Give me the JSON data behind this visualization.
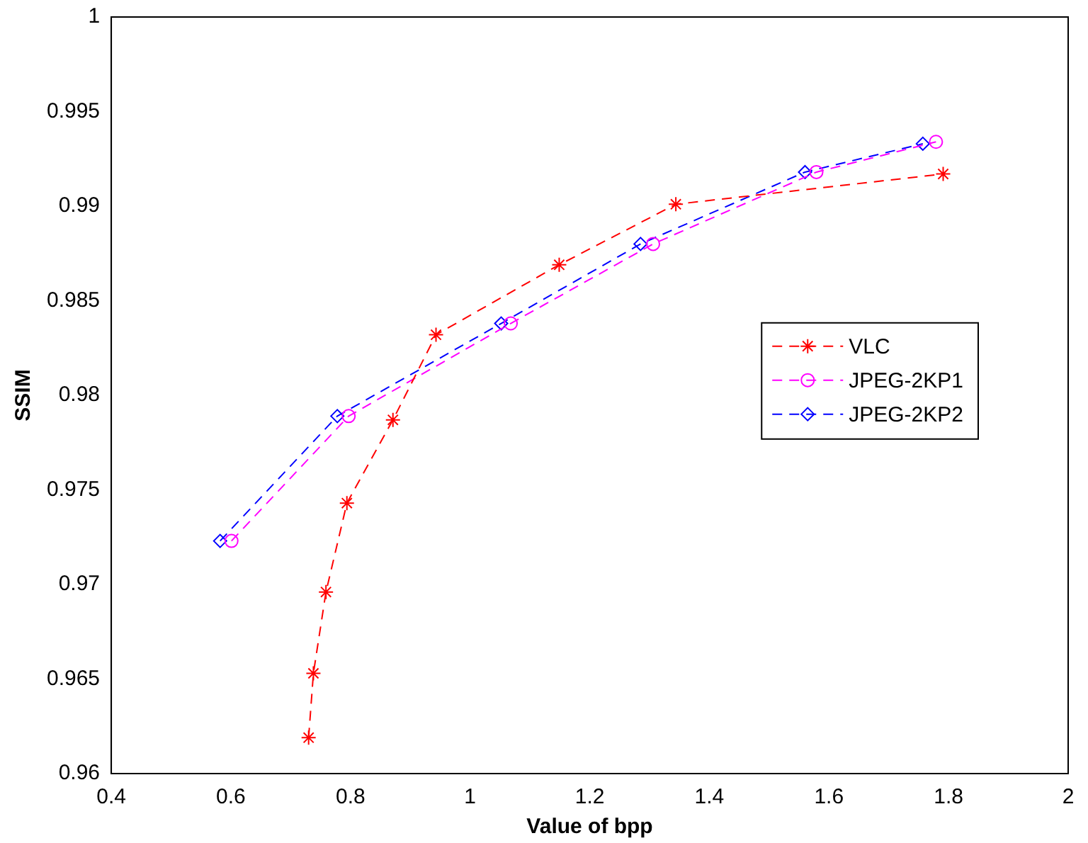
{
  "chart_data": {
    "type": "line",
    "xlabel": "Value of bpp",
    "ylabel": "SSIM",
    "xlim": [
      0.4,
      2
    ],
    "xticks": [
      0.4,
      0.6,
      0.8,
      1,
      1.2,
      1.4,
      1.6,
      1.8,
      2
    ],
    "ylim": [
      0.96,
      1
    ],
    "yticks": [
      0.96,
      0.965,
      0.97,
      0.975,
      0.98,
      0.985,
      0.99,
      0.995,
      1
    ],
    "grid": false,
    "legend": "right",
    "line_style": "dashed",
    "series": [
      {
        "name": "VLC",
        "color": "#ff0000",
        "marker": "cross",
        "x": [
          0.73,
          0.738,
          0.759,
          0.794,
          0.871,
          0.943,
          1.149,
          1.344,
          1.791
        ],
        "values": [
          0.9619,
          0.9653,
          0.9696,
          0.9743,
          0.9787,
          0.9832,
          0.9869,
          0.9901,
          0.9917
        ]
      },
      {
        "name": "JPEG-2KP1",
        "color": "#ff00ff",
        "marker": "circle",
        "x": [
          0.601,
          0.797,
          1.068,
          1.306,
          1.579,
          1.779
        ],
        "values": [
          0.9723,
          0.9789,
          0.9838,
          0.988,
          0.9918,
          0.9934
        ]
      },
      {
        "name": "JPEG-2KP2",
        "color": "#0000ff",
        "marker": "diamond",
        "x": [
          0.582,
          0.778,
          1.052,
          1.285,
          1.56,
          1.757
        ],
        "values": [
          0.9723,
          0.9789,
          0.9838,
          0.988,
          0.9918,
          0.9933
        ]
      }
    ]
  }
}
